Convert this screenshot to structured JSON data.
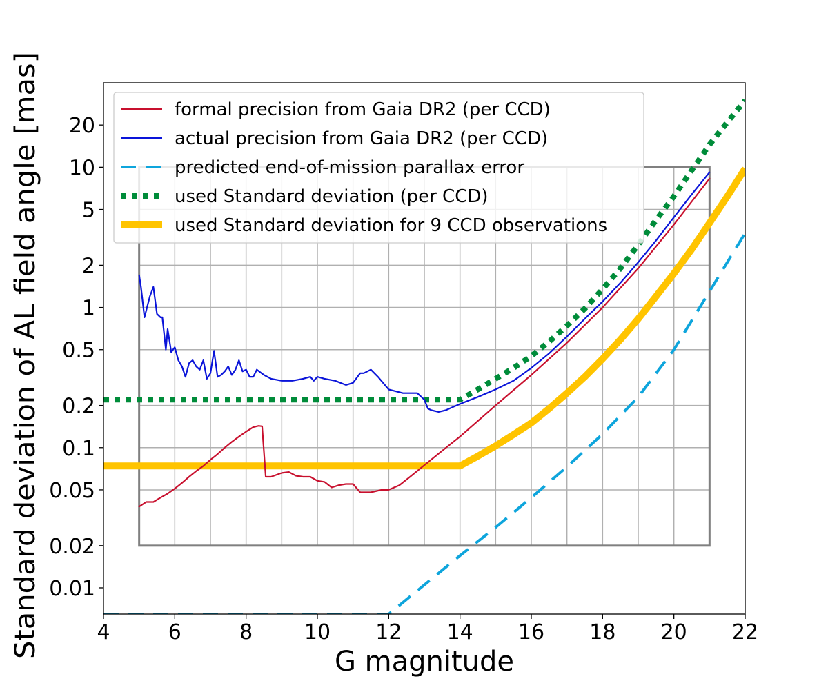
{
  "chart_data": {
    "type": "line",
    "title": "",
    "xlabel": "G magnitude",
    "ylabel": "Standard deviation of AL field angle [mas]",
    "xlim": [
      4,
      22
    ],
    "ylim": [
      0.0065,
      40
    ],
    "yscale": "log",
    "x_ticks": [
      4,
      6,
      8,
      10,
      12,
      14,
      16,
      18,
      20,
      22
    ],
    "y_ticks": [
      {
        "value": 0.01,
        "label": "0.01"
      },
      {
        "value": 0.02,
        "label": "0.02"
      },
      {
        "value": 0.05,
        "label": "0.05"
      },
      {
        "value": 0.1,
        "label": "0.1"
      },
      {
        "value": 0.2,
        "label": "0.2"
      },
      {
        "value": 0.5,
        "label": "0.5"
      },
      {
        "value": 1,
        "label": "1"
      },
      {
        "value": 2,
        "label": "2"
      },
      {
        "value": 5,
        "label": "5"
      },
      {
        "value": 10,
        "label": "10"
      },
      {
        "value": 20,
        "label": "20"
      }
    ],
    "inset_grid": {
      "xrange": [
        5,
        21
      ],
      "yrange": [
        0.02,
        10
      ],
      "x_step": 1
    },
    "legend_position": "upper-left",
    "series": [
      {
        "name": "formal precision from Gaia DR2 (per CCD)",
        "color": "#c8102e",
        "style": "solid",
        "x": [
          5.0,
          5.2,
          5.4,
          5.6,
          5.8,
          6.0,
          6.2,
          6.4,
          6.6,
          6.8,
          7.0,
          7.2,
          7.4,
          7.6,
          7.8,
          8.0,
          8.2,
          8.35,
          8.45,
          8.55,
          8.7,
          9.0,
          9.2,
          9.4,
          9.6,
          9.8,
          10.0,
          10.2,
          10.4,
          10.6,
          10.8,
          11.0,
          11.2,
          11.5,
          11.8,
          12.0,
          12.3,
          12.6,
          13.0,
          13.5,
          14.0,
          15.0,
          16.0,
          17.0,
          18.0,
          19.0,
          20.0,
          21.0
        ],
        "y": [
          0.038,
          0.041,
          0.041,
          0.044,
          0.047,
          0.051,
          0.056,
          0.062,
          0.068,
          0.074,
          0.082,
          0.09,
          0.1,
          0.11,
          0.12,
          0.13,
          0.14,
          0.143,
          0.142,
          0.062,
          0.062,
          0.066,
          0.067,
          0.063,
          0.062,
          0.062,
          0.058,
          0.057,
          0.052,
          0.054,
          0.055,
          0.055,
          0.048,
          0.048,
          0.05,
          0.05,
          0.054,
          0.062,
          0.075,
          0.095,
          0.12,
          0.2,
          0.33,
          0.56,
          1.0,
          1.9,
          3.9,
          8.3
        ]
      },
      {
        "name": "actual precision from Gaia DR2 (per CCD)",
        "color": "#0a14d9",
        "style": "solid",
        "x": [
          5.0,
          5.05,
          5.15,
          5.3,
          5.4,
          5.5,
          5.6,
          5.65,
          5.75,
          5.8,
          5.9,
          6.0,
          6.1,
          6.2,
          6.3,
          6.4,
          6.5,
          6.6,
          6.7,
          6.8,
          6.9,
          7.0,
          7.1,
          7.2,
          7.3,
          7.4,
          7.5,
          7.6,
          7.7,
          7.8,
          7.9,
          8.0,
          8.1,
          8.2,
          8.3,
          8.5,
          8.7,
          9.0,
          9.3,
          9.6,
          9.8,
          9.9,
          10.0,
          10.2,
          10.5,
          10.8,
          11.0,
          11.2,
          11.3,
          11.5,
          11.7,
          12.0,
          12.4,
          12.8,
          13.0,
          13.1,
          13.2,
          13.4,
          13.6,
          14.0,
          14.5,
          15.0,
          15.5,
          16.0,
          16.5,
          17.0,
          17.5,
          18.0,
          18.5,
          19.0,
          19.5,
          20.0,
          20.5,
          21.0
        ],
        "y": [
          1.7,
          1.4,
          0.85,
          1.2,
          1.4,
          0.9,
          0.85,
          0.85,
          0.5,
          0.7,
          0.48,
          0.52,
          0.42,
          0.38,
          0.32,
          0.4,
          0.42,
          0.38,
          0.36,
          0.42,
          0.31,
          0.34,
          0.49,
          0.32,
          0.33,
          0.35,
          0.38,
          0.33,
          0.36,
          0.42,
          0.35,
          0.36,
          0.32,
          0.32,
          0.36,
          0.33,
          0.31,
          0.3,
          0.3,
          0.31,
          0.32,
          0.3,
          0.32,
          0.31,
          0.3,
          0.28,
          0.29,
          0.34,
          0.34,
          0.36,
          0.32,
          0.26,
          0.245,
          0.245,
          0.22,
          0.19,
          0.185,
          0.18,
          0.185,
          0.205,
          0.23,
          0.26,
          0.3,
          0.37,
          0.47,
          0.62,
          0.83,
          1.1,
          1.5,
          2.1,
          3.0,
          4.4,
          6.4,
          9.2
        ]
      },
      {
        "name": "predicted end-of-mission parallax error",
        "color": "#0ea5dc",
        "style": "dashed",
        "x": [
          4.0,
          12.0,
          13.0,
          14.0,
          15.0,
          16.0,
          17.0,
          18.0,
          19.0,
          20.0,
          21.0,
          22.0
        ],
        "y": [
          0.0065,
          0.0065,
          0.0105,
          0.017,
          0.027,
          0.044,
          0.073,
          0.125,
          0.23,
          0.5,
          1.3,
          3.4
        ]
      },
      {
        "name": "used Standard deviation (per CCD)",
        "color": "#008c3a",
        "style": "dotted",
        "x": [
          4.0,
          14.0,
          14.5,
          15.0,
          15.5,
          16.0,
          16.5,
          17.0,
          17.5,
          18.0,
          18.5,
          19.0,
          19.5,
          20.0,
          20.5,
          21.0,
          21.5,
          22.0
        ],
        "y": [
          0.22,
          0.22,
          0.26,
          0.31,
          0.37,
          0.45,
          0.57,
          0.74,
          0.98,
          1.35,
          1.9,
          2.8,
          4.2,
          6.2,
          9.5,
          14.5,
          21.0,
          30.0
        ]
      },
      {
        "name": "used Standard deviation for 9 CCD observations",
        "color": "#ffc400",
        "style": "thick",
        "x": [
          4.0,
          14.0,
          14.5,
          15.0,
          15.5,
          16.0,
          16.5,
          17.0,
          17.5,
          18.0,
          18.5,
          19.0,
          19.5,
          20.0,
          20.5,
          21.0,
          21.5,
          22.0
        ],
        "y": [
          0.074,
          0.074,
          0.087,
          0.103,
          0.124,
          0.15,
          0.19,
          0.245,
          0.32,
          0.43,
          0.59,
          0.83,
          1.2,
          1.75,
          2.6,
          4.0,
          6.2,
          9.8
        ]
      }
    ]
  }
}
